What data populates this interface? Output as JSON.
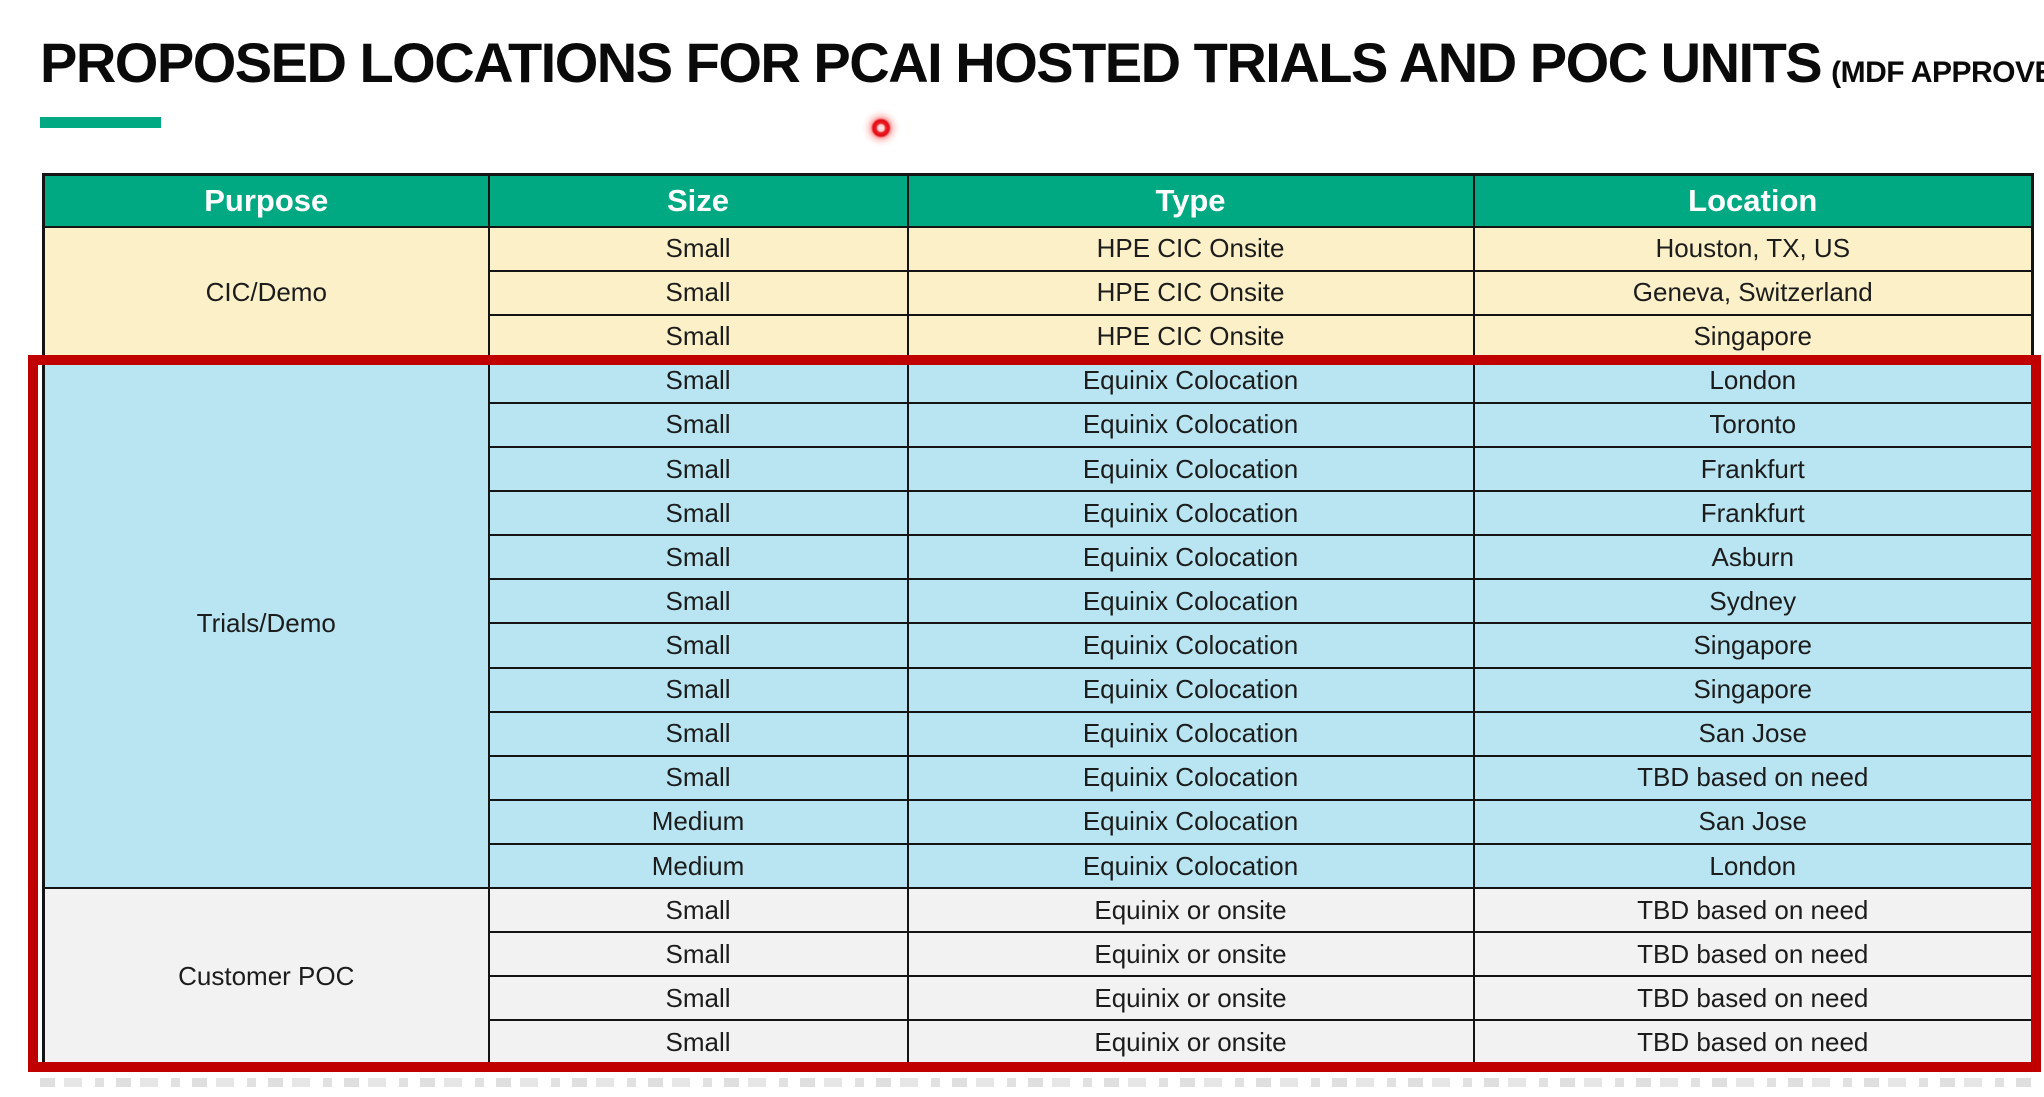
{
  "slide": {
    "title": "PROPOSED LOCATIONS FOR PCAI HOSTED TRIALS AND POC UNITS",
    "title_suffix": "(MDF APPROVED)",
    "accent_color": "#01A982",
    "highlight_border_color": "#C00000",
    "laser_dot_color": "#EC1C24"
  },
  "table": {
    "header_bg": "#01A982",
    "header_text_color": "#FFFFFF",
    "headers": [
      "Purpose",
      "Size",
      "Type",
      "Location"
    ],
    "groups": [
      {
        "purpose": "CIC/Demo",
        "bg": "#FBF0C8",
        "rows": [
          [
            "Small",
            "HPE CIC Onsite",
            "Houston, TX, US"
          ],
          [
            "Small",
            "HPE CIC Onsite",
            "Geneva, Switzerland"
          ],
          [
            "Small",
            "HPE CIC Onsite",
            "Singapore"
          ]
        ]
      },
      {
        "purpose": "Trials/Demo",
        "bg": "#B8E5F1",
        "rows": [
          [
            "Small",
            "Equinix Colocation",
            "London"
          ],
          [
            "Small",
            "Equinix Colocation",
            "Toronto"
          ],
          [
            "Small",
            "Equinix Colocation",
            "Frankfurt"
          ],
          [
            "Small",
            "Equinix Colocation",
            "Frankfurt"
          ],
          [
            "Small",
            "Equinix Colocation",
            "Asburn"
          ],
          [
            "Small",
            "Equinix Colocation",
            "Sydney"
          ],
          [
            "Small",
            "Equinix Colocation",
            "Singapore"
          ],
          [
            "Small",
            "Equinix Colocation",
            "Singapore"
          ],
          [
            "Small",
            "Equinix Colocation",
            "San Jose"
          ],
          [
            "Small",
            "Equinix Colocation",
            "TBD based on need"
          ],
          [
            "Medium",
            "Equinix Colocation",
            "San Jose"
          ],
          [
            "Medium",
            "Equinix Colocation",
            "London"
          ]
        ]
      },
      {
        "purpose": "Customer POC",
        "bg": "#F2F2F2",
        "rows": [
          [
            "Small",
            "Equinix or onsite",
            "TBD based on need"
          ],
          [
            "Small",
            "Equinix or onsite",
            "TBD based on need"
          ],
          [
            "Small",
            "Equinix or onsite",
            "TBD based on need"
          ],
          [
            "Small",
            "Equinix or onsite",
            "TBD based on need"
          ]
        ]
      }
    ]
  }
}
